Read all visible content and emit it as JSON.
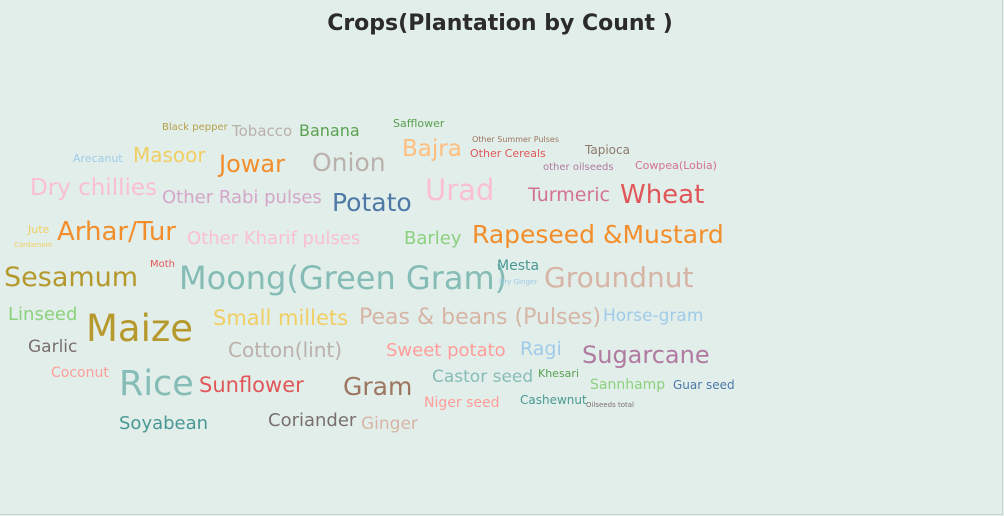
{
  "chart_data": {
    "type": "wordcloud",
    "title": "Crops(Plantation by Count )",
    "words": [
      {
        "text": "Black pepper",
        "color": "#b5a04a"
      },
      {
        "text": "Tobacco",
        "color": "#bab0ac"
      },
      {
        "text": "Banana",
        "color": "#59a14f"
      },
      {
        "text": "Safflower",
        "color": "#59a14f"
      },
      {
        "text": "Other Summer Pulses",
        "color": "#9d7660"
      },
      {
        "text": "Tapioca",
        "color": "#8c7a6b"
      },
      {
        "text": "Arecanut",
        "color": "#a0cbe8"
      },
      {
        "text": "Masoor",
        "color": "#f1ce63"
      },
      {
        "text": "Jowar",
        "color": "#f28e2b"
      },
      {
        "text": "Onion",
        "color": "#bab0ac"
      },
      {
        "text": "Bajra",
        "color": "#ffbe7d"
      },
      {
        "text": "Other Cereals",
        "color": "#e15759"
      },
      {
        "text": "other oilseeds",
        "color": "#b07aa1"
      },
      {
        "text": "Cowpea(Lobia)",
        "color": "#d37295"
      },
      {
        "text": "Dry chillies",
        "color": "#fabfd2"
      },
      {
        "text": "Other Rabi pulses",
        "color": "#d4a6c8"
      },
      {
        "text": "Potato",
        "color": "#4e79a7"
      },
      {
        "text": "Urad",
        "color": "#fabfd2"
      },
      {
        "text": "Turmeric",
        "color": "#d37295"
      },
      {
        "text": "Wheat",
        "color": "#e15759"
      },
      {
        "text": "Jute",
        "color": "#f1ce63"
      },
      {
        "text": "Cardamom",
        "color": "#f1ce63"
      },
      {
        "text": "Arhar/Tur",
        "color": "#f28e2b"
      },
      {
        "text": "Other Kharif pulses",
        "color": "#fabfd2"
      },
      {
        "text": "Barley",
        "color": "#8cd17d"
      },
      {
        "text": "Rapeseed &Mustard",
        "color": "#f28e2b"
      },
      {
        "text": "Sesamum",
        "color": "#b6992d"
      },
      {
        "text": "Moth",
        "color": "#e15759"
      },
      {
        "text": "Moong(Green Gram)",
        "color": "#86bcb6"
      },
      {
        "text": "Mesta",
        "color": "#499894"
      },
      {
        "text": "Dry Ginger",
        "color": "#a0cbe8"
      },
      {
        "text": "Groundnut",
        "color": "#d7b5a6"
      },
      {
        "text": "Linseed",
        "color": "#8cd17d"
      },
      {
        "text": "Maize",
        "color": "#b6992d"
      },
      {
        "text": "Small millets",
        "color": "#f1ce63"
      },
      {
        "text": "Peas & beans (Pulses)",
        "color": "#d7b5a6"
      },
      {
        "text": "Horse-gram",
        "color": "#a0cbe8"
      },
      {
        "text": "Garlic",
        "color": "#79706e"
      },
      {
        "text": "Cotton(lint)",
        "color": "#bab0ac"
      },
      {
        "text": "Sweet potato",
        "color": "#ff9d9a"
      },
      {
        "text": "Ragi",
        "color": "#a0cbe8"
      },
      {
        "text": "Sugarcane",
        "color": "#b07aa1"
      },
      {
        "text": "Coconut",
        "color": "#ff9d9a"
      },
      {
        "text": "Rice",
        "color": "#86bcb6"
      },
      {
        "text": "Sunflower",
        "color": "#e15759"
      },
      {
        "text": "Gram",
        "color": "#9d7660"
      },
      {
        "text": "Castor seed",
        "color": "#86bcb6"
      },
      {
        "text": "Khesari",
        "color": "#59a14f"
      },
      {
        "text": "Sannhamp",
        "color": "#8cd17d"
      },
      {
        "text": "Guar seed",
        "color": "#4e79a7"
      },
      {
        "text": "Niger seed",
        "color": "#ff9d9a"
      },
      {
        "text": "Cashewnut",
        "color": "#499894"
      },
      {
        "text": "Oilseeds total",
        "color": "#79706e"
      },
      {
        "text": "Soyabean",
        "color": "#499894"
      },
      {
        "text": "Coriander",
        "color": "#79706e"
      },
      {
        "text": "Ginger",
        "color": "#d7b5a6"
      }
    ]
  }
}
